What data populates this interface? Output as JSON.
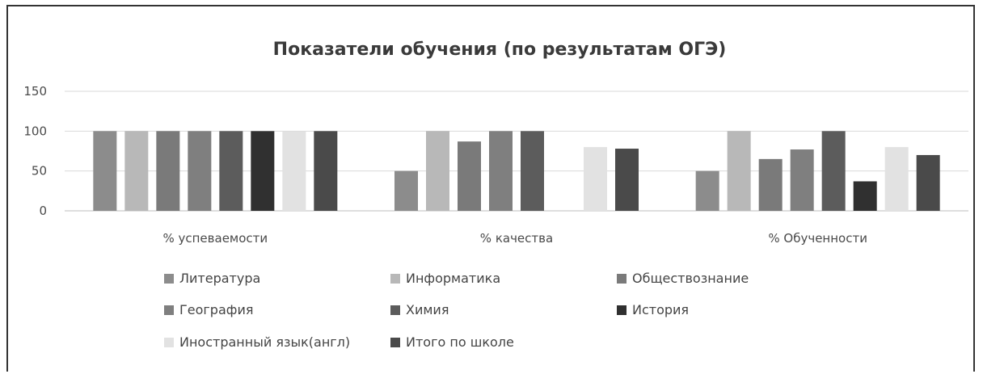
{
  "chart_data": {
    "type": "bar",
    "title": "Показатели обучения (по результатам ОГЭ)",
    "xlabel": "",
    "ylabel": "",
    "ylim": [
      0,
      150
    ],
    "yticks": [
      0,
      50,
      100,
      150
    ],
    "grid": true,
    "legend_position": "bottom",
    "categories": [
      "% успеваемости",
      "% качества",
      "% Обученности"
    ],
    "series": [
      {
        "name": "Литература",
        "color": "#8c8c8c",
        "values": [
          100,
          50,
          50
        ]
      },
      {
        "name": "Информатика",
        "color": "#b8b8b8",
        "values": [
          100,
          100,
          100
        ]
      },
      {
        "name": "Обществознание",
        "color": "#7a7a7a",
        "values": [
          100,
          87,
          65
        ]
      },
      {
        "name": "География",
        "color": "#7f7f7f",
        "values": [
          100,
          100,
          77
        ]
      },
      {
        "name": "Химия",
        "color": "#5c5c5c",
        "values": [
          100,
          100,
          100
        ]
      },
      {
        "name": "История",
        "color": "#303030",
        "values": [
          100,
          0,
          37
        ]
      },
      {
        "name": "Иностранный язык(англ)",
        "color": "#e2e2e2",
        "values": [
          100,
          80,
          80
        ]
      },
      {
        "name": "Итого по школе",
        "color": "#4a4a4a",
        "values": [
          100,
          78,
          70
        ]
      }
    ]
  }
}
